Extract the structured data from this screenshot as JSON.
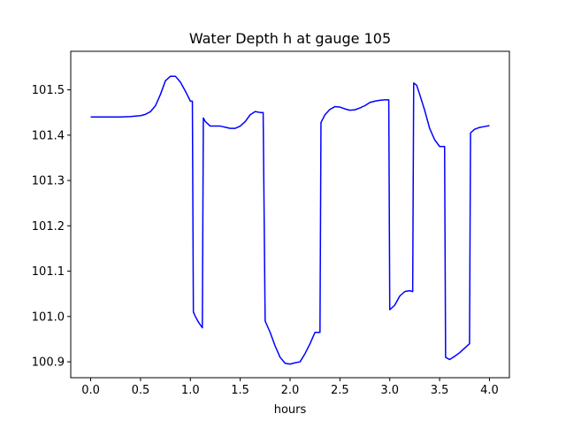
{
  "chart_data": {
    "type": "line",
    "title": "Water Depth h at gauge 105",
    "xlabel": "hours",
    "ylabel": "",
    "xlim": [
      -0.2,
      4.2
    ],
    "ylim": [
      100.865,
      101.585
    ],
    "xticks": [
      0.0,
      0.5,
      1.0,
      1.5,
      2.0,
      2.5,
      3.0,
      3.5,
      4.0
    ],
    "xtick_labels": [
      "0.0",
      "0.5",
      "1.0",
      "1.5",
      "2.0",
      "2.5",
      "3.0",
      "3.5",
      "4.0"
    ],
    "yticks": [
      100.9,
      101.0,
      101.1,
      101.2,
      101.3,
      101.4,
      101.5
    ],
    "ytick_labels": [
      "100.9",
      "101.0",
      "101.1",
      "101.2",
      "101.3",
      "101.4",
      "101.5"
    ],
    "grid": false,
    "legend": "none",
    "series": [
      {
        "color": "#0000ff",
        "x": [
          0.0,
          0.1,
          0.2,
          0.3,
          0.4,
          0.5,
          0.55,
          0.6,
          0.65,
          0.7,
          0.75,
          0.8,
          0.85,
          0.9,
          0.95,
          1.0,
          1.02,
          1.03,
          1.05,
          1.08,
          1.12,
          1.13,
          1.15,
          1.2,
          1.3,
          1.4,
          1.45,
          1.5,
          1.55,
          1.6,
          1.65,
          1.7,
          1.73,
          1.75,
          1.76,
          1.8,
          1.85,
          1.9,
          1.95,
          2.0,
          2.05,
          2.1,
          2.15,
          2.2,
          2.25,
          2.3,
          2.31,
          2.35,
          2.4,
          2.45,
          2.5,
          2.55,
          2.6,
          2.65,
          2.7,
          2.75,
          2.8,
          2.85,
          2.9,
          2.95,
          2.99,
          3.0,
          3.05,
          3.1,
          3.15,
          3.2,
          3.23,
          3.24,
          3.27,
          3.3,
          3.35,
          3.4,
          3.45,
          3.5,
          3.55,
          3.56,
          3.6,
          3.65,
          3.7,
          3.75,
          3.8,
          3.81,
          3.85,
          3.9,
          3.95,
          4.0
        ],
        "y": [
          101.44,
          101.44,
          101.44,
          101.44,
          101.441,
          101.443,
          101.446,
          101.452,
          101.465,
          101.49,
          101.52,
          101.53,
          101.53,
          101.517,
          101.497,
          101.475,
          101.475,
          101.01,
          101.0,
          100.988,
          100.975,
          101.438,
          101.43,
          101.42,
          101.42,
          101.415,
          101.415,
          101.42,
          101.43,
          101.445,
          101.452,
          101.45,
          101.45,
          100.99,
          100.985,
          100.965,
          100.935,
          100.91,
          100.897,
          100.895,
          100.898,
          100.9,
          100.918,
          100.94,
          100.965,
          100.965,
          101.428,
          101.445,
          101.457,
          101.463,
          101.462,
          101.458,
          101.455,
          101.456,
          101.46,
          101.465,
          101.472,
          101.475,
          101.477,
          101.478,
          101.478,
          101.015,
          101.025,
          101.045,
          101.055,
          101.057,
          101.055,
          101.515,
          101.51,
          101.49,
          101.455,
          101.415,
          101.39,
          101.375,
          101.375,
          100.91,
          100.905,
          100.912,
          100.92,
          100.93,
          100.94,
          101.405,
          101.413,
          101.417,
          101.419,
          101.421
        ]
      }
    ]
  }
}
